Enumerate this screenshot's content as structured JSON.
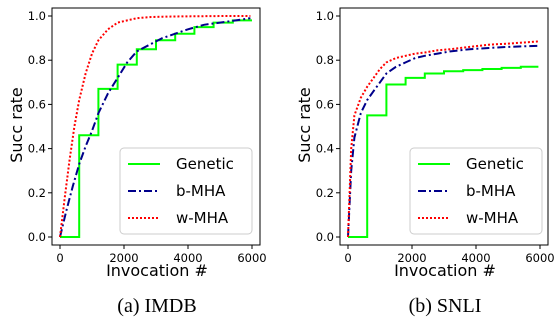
{
  "chart_data": [
    {
      "type": "line",
      "caption": "(a) IMDB",
      "xlabel": "Invocation #",
      "ylabel": "Succ rate",
      "xlim": [
        0,
        6000
      ],
      "ylim": [
        0,
        1.0
      ],
      "xticks": [
        "0",
        "2000",
        "4000",
        "6000"
      ],
      "yticks": [
        "0.0",
        "0.2",
        "0.4",
        "0.6",
        "0.8",
        "1.0"
      ],
      "legend_position": "lower-right",
      "series": [
        {
          "name": "Genetic",
          "color": "#00ff00",
          "style": "solid",
          "x": [
            0,
            600,
            600,
            1200,
            1200,
            1800,
            1800,
            2400,
            2400,
            3000,
            3000,
            3600,
            3600,
            4200,
            4200,
            4800,
            4800,
            5400,
            5400,
            6000
          ],
          "y": [
            0,
            0,
            0.46,
            0.46,
            0.67,
            0.67,
            0.78,
            0.78,
            0.85,
            0.85,
            0.89,
            0.89,
            0.92,
            0.92,
            0.95,
            0.95,
            0.97,
            0.97,
            0.98,
            0.98
          ]
        },
        {
          "name": "b-MHA",
          "color": "#00008b",
          "style": "dashdot",
          "x": [
            0,
            200,
            400,
            600,
            800,
            1000,
            1200,
            1500,
            1800,
            2100,
            2400,
            2800,
            3200,
            3600,
            4000,
            4500,
            5000,
            5500,
            5950
          ],
          "y": [
            0,
            0.12,
            0.23,
            0.33,
            0.41,
            0.48,
            0.56,
            0.65,
            0.72,
            0.79,
            0.84,
            0.87,
            0.9,
            0.92,
            0.94,
            0.96,
            0.97,
            0.98,
            0.99
          ]
        },
        {
          "name": "w-MHA",
          "color": "#ff0000",
          "style": "dotted",
          "x": [
            0,
            150,
            300,
            450,
            600,
            800,
            1000,
            1200,
            1500,
            1800,
            2100,
            2400,
            2800,
            3200,
            3800,
            4500,
            5200,
            5950
          ],
          "y": [
            0,
            0.18,
            0.35,
            0.5,
            0.62,
            0.74,
            0.83,
            0.89,
            0.94,
            0.97,
            0.98,
            0.99,
            0.995,
            0.997,
            0.998,
            0.999,
            1.0,
            1.0
          ]
        }
      ]
    },
    {
      "type": "line",
      "caption": "(b) SNLI",
      "xlabel": "Invocation #",
      "ylabel": "Succ rate",
      "xlim": [
        0,
        6000
      ],
      "ylim": [
        0,
        1.0
      ],
      "xticks": [
        "0",
        "2000",
        "4000",
        "6000"
      ],
      "yticks": [
        "0.0",
        "0.2",
        "0.4",
        "0.6",
        "0.8",
        "1.0"
      ],
      "legend_position": "lower-right",
      "series": [
        {
          "name": "Genetic",
          "color": "#00ff00",
          "style": "solid",
          "x": [
            0,
            600,
            600,
            1200,
            1200,
            1800,
            1800,
            2400,
            2400,
            3000,
            3000,
            3600,
            3600,
            4200,
            4200,
            4800,
            4800,
            5400,
            5400,
            5950
          ],
          "y": [
            0,
            0,
            0.55,
            0.55,
            0.69,
            0.69,
            0.72,
            0.72,
            0.74,
            0.74,
            0.75,
            0.75,
            0.755,
            0.755,
            0.76,
            0.76,
            0.765,
            0.765,
            0.77,
            0.77
          ]
        },
        {
          "name": "b-MHA",
          "color": "#00008b",
          "style": "dashdot",
          "x": [
            0,
            100,
            200,
            400,
            600,
            800,
            1000,
            1200,
            1500,
            1800,
            2100,
            2400,
            2800,
            3200,
            3800,
            4400,
            5000,
            5500,
            5950
          ],
          "y": [
            0,
            0.3,
            0.45,
            0.56,
            0.62,
            0.66,
            0.7,
            0.74,
            0.77,
            0.79,
            0.81,
            0.82,
            0.83,
            0.84,
            0.85,
            0.855,
            0.86,
            0.863,
            0.865
          ]
        },
        {
          "name": "w-MHA",
          "color": "#ff0000",
          "style": "dotted",
          "x": [
            0,
            100,
            200,
            400,
            600,
            800,
            1000,
            1200,
            1500,
            1800,
            2100,
            2400,
            2800,
            3200,
            3800,
            4400,
            5000,
            5500,
            5950
          ],
          "y": [
            0,
            0.4,
            0.55,
            0.63,
            0.68,
            0.72,
            0.76,
            0.79,
            0.81,
            0.82,
            0.83,
            0.835,
            0.845,
            0.85,
            0.86,
            0.87,
            0.875,
            0.88,
            0.885
          ]
        }
      ]
    }
  ]
}
